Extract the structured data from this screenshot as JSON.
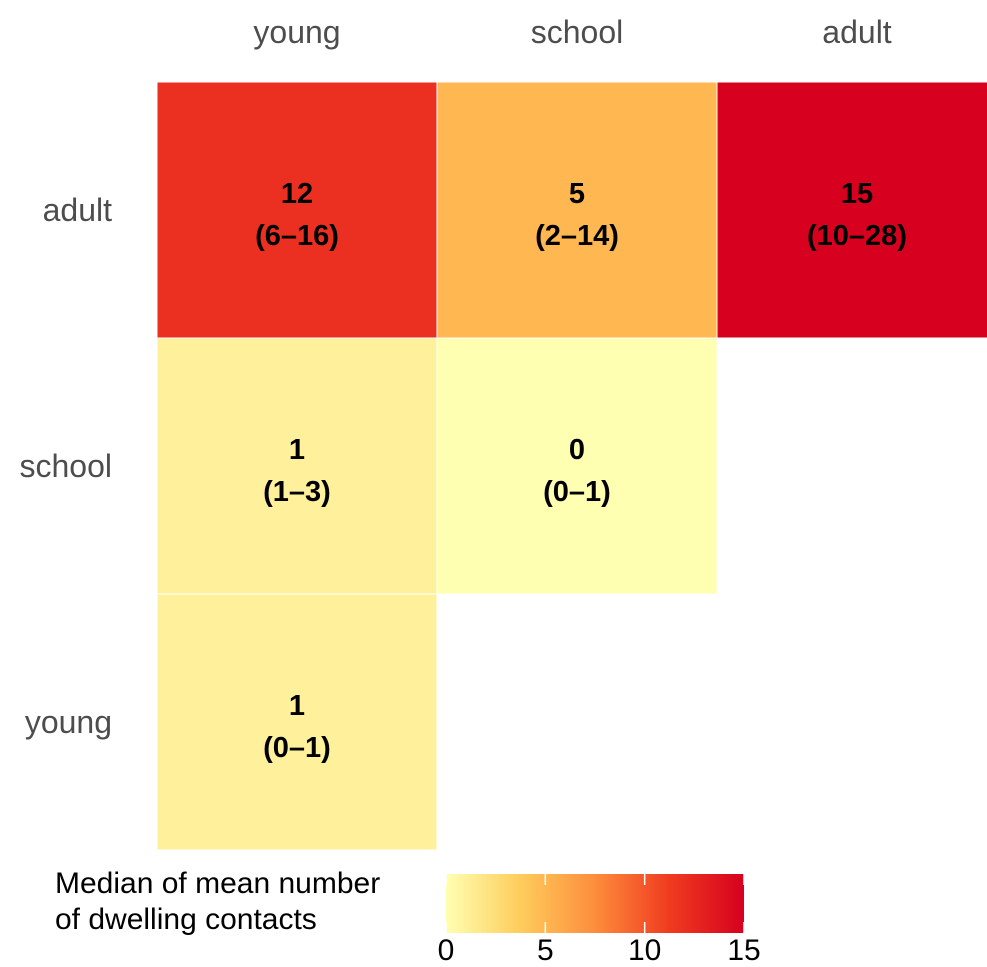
{
  "chart_data": {
    "type": "heatmap",
    "x_categories": [
      "young",
      "school",
      "adult"
    ],
    "y_categories": [
      "adult",
      "school",
      "young"
    ],
    "cells": [
      {
        "x": "young",
        "y": "adult",
        "value": 12,
        "label": "12",
        "range": "(6–16)"
      },
      {
        "x": "school",
        "y": "adult",
        "value": 5,
        "label": "5",
        "range": "(2–14)"
      },
      {
        "x": "adult",
        "y": "adult",
        "value": 15,
        "label": "15",
        "range": "(10–28)"
      },
      {
        "x": "young",
        "y": "school",
        "value": 1,
        "label": "1",
        "range": "(1–3)"
      },
      {
        "x": "school",
        "y": "school",
        "value": 0,
        "label": "0",
        "range": "(0–1)"
      },
      {
        "x": "young",
        "y": "young",
        "value": 1,
        "label": "1",
        "range": "(0–1)"
      }
    ],
    "legend": {
      "title_lines": [
        "Median of mean number",
        "of dwelling contacts"
      ],
      "range": [
        0,
        15
      ],
      "ticks": [
        0,
        5,
        10,
        15
      ],
      "tick_labels": [
        "0",
        "5",
        "10",
        "15"
      ],
      "colors": [
        "#ffffb2",
        "#fecc5c",
        "#fd8d3c",
        "#f03b20",
        "#d7001f"
      ],
      "position": "bottom"
    }
  }
}
